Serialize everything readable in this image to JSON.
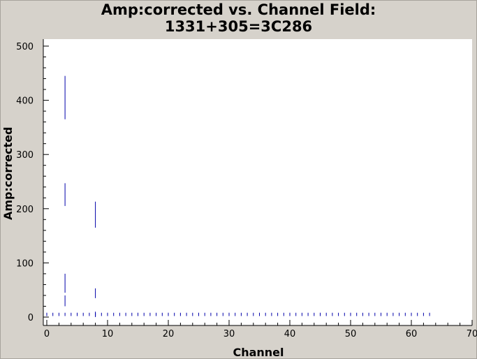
{
  "chart_data": {
    "type": "scatter",
    "title": [
      "Amp:corrected vs. Channel Field:",
      "1331+305=3C286"
    ],
    "xlabel": "Channel",
    "ylabel": "Amp:corrected",
    "xlim": [
      0,
      70
    ],
    "ylim": [
      0,
      500
    ],
    "xticks": [
      "0",
      "10",
      "20",
      "30",
      "40",
      "50",
      "60",
      "70"
    ],
    "yticks": [
      "0",
      "100",
      "200",
      "300",
      "400",
      "500"
    ],
    "grid": false,
    "marker_color": "#0000aa",
    "vertical_segments": [
      {
        "x": 3,
        "y0": 365,
        "y1": 445
      },
      {
        "x": 3,
        "y0": 205,
        "y1": 247
      },
      {
        "x": 3,
        "y0": 45,
        "y1": 80
      },
      {
        "x": 3,
        "y0": 20,
        "y1": 40
      },
      {
        "x": 8,
        "y0": 165,
        "y1": 213
      },
      {
        "x": 8,
        "y0": 35,
        "y1": 53
      },
      {
        "x": 8,
        "y0": 0,
        "y1": 10
      }
    ],
    "baseline_channels": [
      0,
      1,
      2,
      3,
      4,
      5,
      6,
      7,
      8,
      9,
      10,
      11,
      12,
      13,
      14,
      15,
      16,
      17,
      18,
      19,
      20,
      21,
      22,
      23,
      24,
      25,
      26,
      27,
      28,
      29,
      30,
      31,
      32,
      33,
      34,
      35,
      36,
      37,
      38,
      39,
      40,
      41,
      42,
      43,
      44,
      45,
      46,
      47,
      48,
      49,
      50,
      51,
      52,
      53,
      54,
      55,
      56,
      57,
      58,
      59,
      60,
      61,
      62,
      63
    ],
    "baseline_range": [
      2,
      8
    ]
  }
}
